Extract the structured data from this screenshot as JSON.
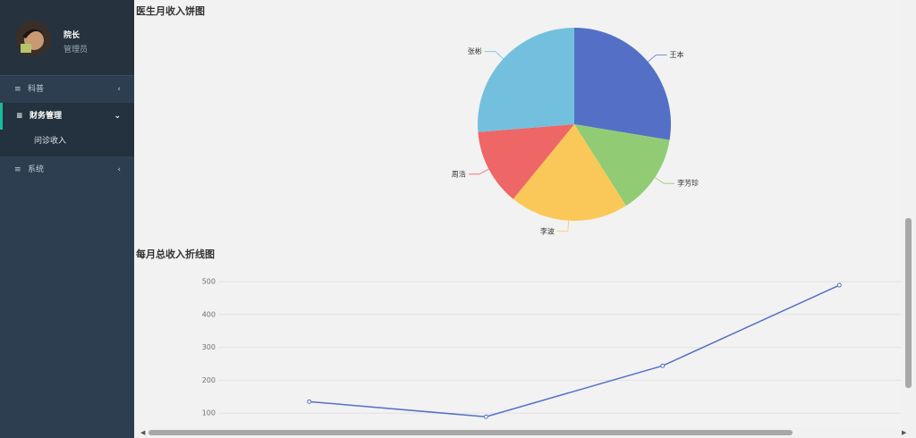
{
  "sidebar": {
    "user": {
      "name": "院长",
      "role": "管理员"
    },
    "menu": [
      {
        "label": "科普"
      },
      {
        "label": "财务管理",
        "children": [
          "问诊收入"
        ]
      },
      {
        "label": "系统"
      }
    ]
  },
  "chart_data": [
    {
      "type": "pie",
      "title": "医生月收入饼图",
      "categories": [
        "王本",
        "李芳珍",
        "李波",
        "周浩",
        "张彬"
      ],
      "values": [
        276,
        134,
        199,
        128,
        263
      ],
      "colors": [
        "#5470c6",
        "#91cc75",
        "#fac858",
        "#ee6666",
        "#73c0de"
      ]
    },
    {
      "type": "line",
      "title": "每月总收入折线图",
      "categories": [
        null,
        null,
        null,
        null
      ],
      "series": [
        {
          "color": "#5470c6",
          "values": [
            135,
            89,
            244,
            489
          ]
        }
      ],
      "ylim": [
        0,
        500
      ],
      "yticks": [
        100,
        200,
        300,
        400,
        500
      ],
      "grid": true
    }
  ]
}
